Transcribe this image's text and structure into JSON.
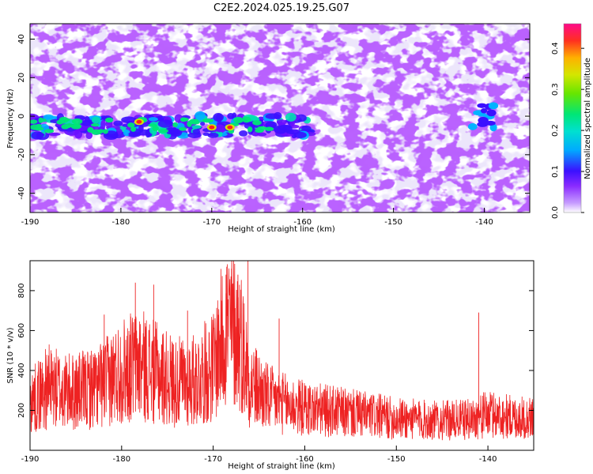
{
  "title": "C2E2.2024.025.19.25.G07",
  "colors": {
    "snr_line": "#ee2222",
    "colormap": [
      "#ffffff",
      "#ddc8f5",
      "#a46cff",
      "#7a10ff",
      "#3b10ff",
      "#00b3ff",
      "#00e6d0",
      "#00e676",
      "#9be600",
      "#ffcc00",
      "#ff2020",
      "#ff1493"
    ]
  },
  "chart_data": [
    {
      "type": "heatmap",
      "xlabel": "Height of straight line (km)",
      "ylabel": "Frequency (Hz)",
      "xlim": [
        -190,
        -135
      ],
      "ylim": [
        -50,
        48
      ],
      "x_ticks": [
        "-190",
        "-180",
        "-170",
        "-160",
        "-150",
        "-140"
      ],
      "y_ticks": [
        "-40",
        "-20",
        "0",
        "20",
        "40"
      ],
      "colorbar": {
        "label": "Normalized spectral amplitude",
        "range": [
          0,
          0.46
        ],
        "ticks": [
          "0.0",
          "0.1",
          "0.2",
          "0.3",
          "0.4"
        ]
      },
      "features": {
        "strong_band_frequency_hz": -5,
        "strong_band_height_range_km": [
          -190,
          -159
        ],
        "strong_band_peak_height_km": [
          -178,
          -170,
          -168
        ],
        "secondary_feature_height_km": -140,
        "secondary_feature_frequency_hz": 0
      }
    },
    {
      "type": "line",
      "xlabel": "Height of straight line (km)",
      "ylabel": "SNR (10 * v/v)",
      "xlim": [
        -190,
        -135
      ],
      "ylim": [
        0,
        950
      ],
      "x_ticks": [
        "-190",
        "-180",
        "-170",
        "-160",
        "-150",
        "-140"
      ],
      "y_ticks": [
        "200",
        "400",
        "600",
        "800"
      ],
      "series": [
        {
          "x": [
            -190,
            -188,
            -186,
            -184,
            -182,
            -180,
            -178,
            -176,
            -174,
            -172,
            -170,
            -168.5,
            -167,
            -166,
            -164,
            -162,
            -160,
            -158,
            -156,
            -154,
            -152,
            -150,
            -148,
            -146,
            -144,
            -142,
            -140,
            -138,
            -136,
            -135
          ],
          "y": [
            240,
            320,
            290,
            300,
            330,
            400,
            430,
            380,
            340,
            350,
            420,
            640,
            560,
            340,
            260,
            230,
            210,
            200,
            190,
            180,
            170,
            160,
            155,
            150,
            150,
            155,
            180,
            170,
            160,
            165
          ],
          "peaks": [
            {
              "x": -181.9,
              "y": 680
            },
            {
              "x": -179.0,
              "y": 670
            },
            {
              "x": -178.5,
              "y": 840
            },
            {
              "x": -176.5,
              "y": 830
            },
            {
              "x": -172.8,
              "y": 700
            },
            {
              "x": -168.6,
              "y": 880
            },
            {
              "x": -168.0,
              "y": 910
            },
            {
              "x": -167.3,
              "y": 880
            },
            {
              "x": -166.2,
              "y": 950
            },
            {
              "x": -162.8,
              "y": 660
            },
            {
              "x": -141.0,
              "y": 690
            }
          ]
        }
      ]
    }
  ]
}
